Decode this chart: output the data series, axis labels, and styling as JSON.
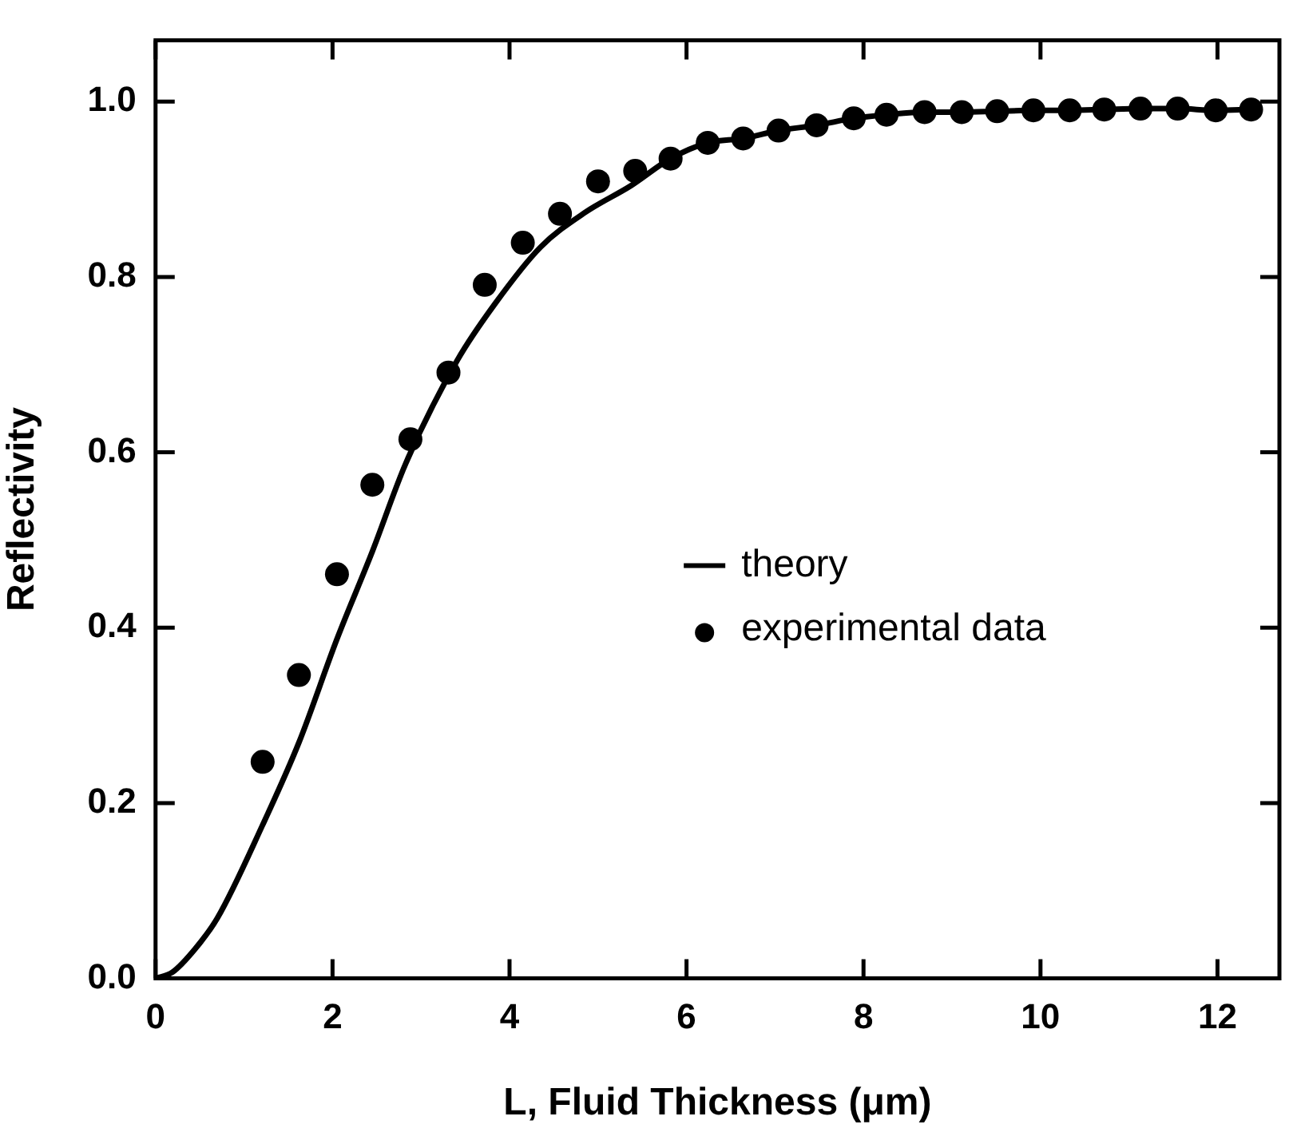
{
  "chart_data": {
    "type": "line",
    "xlabel": "L, Fluid Thickness (μm)",
    "ylabel": "Reflectivity",
    "xlim": [
      0,
      12.7
    ],
    "ylim": [
      0,
      1.07
    ],
    "xticks": [
      0,
      2,
      4,
      6,
      8,
      10,
      12
    ],
    "yticks": [
      {
        "value": 0,
        "label": "0.0"
      },
      {
        "value": 0.2,
        "label": "0.2"
      },
      {
        "value": 0.4,
        "label": "0.4"
      },
      {
        "value": 0.6,
        "label": "0.6"
      },
      {
        "value": 0.8,
        "label": "0.8"
      },
      {
        "value": 1,
        "label": "1.0"
      }
    ],
    "grid": false,
    "legend": "right",
    "series": [
      {
        "name": "theory",
        "type": "line",
        "color": "#000000",
        "marker": "none",
        "line_style": "solid",
        "x": [
          0,
          0.19,
          0.45,
          0.7,
          1.21,
          1.62,
          2.05,
          2.45,
          2.83,
          3.41,
          3.84,
          4.35,
          4.86,
          5.37,
          5.82,
          6.24,
          6.64,
          7.04,
          7.47,
          7.89,
          8.26,
          8.69,
          9.11,
          9.51,
          9.92,
          10.33,
          10.72,
          11.13,
          11.55,
          11.98,
          12.38
        ],
        "values": [
          0,
          0.007,
          0.034,
          0.069,
          0.175,
          0.269,
          0.387,
          0.487,
          0.588,
          0.705,
          0.77,
          0.834,
          0.874,
          0.904,
          0.935,
          0.953,
          0.958,
          0.967,
          0.973,
          0.981,
          0.985,
          0.988,
          0.988,
          0.989,
          0.99,
          0.99,
          0.991,
          0.992,
          0.992,
          0.99,
          0.991
        ]
      },
      {
        "name": "experimental data",
        "type": "scatter",
        "color": "#000000",
        "marker": "circle",
        "x": [
          1.21,
          1.62,
          2.05,
          2.45,
          2.88,
          3.31,
          3.72,
          4.15,
          4.57,
          5.0,
          5.42,
          5.82,
          6.24,
          6.64,
          7.04,
          7.47,
          7.89,
          8.26,
          8.69,
          9.11,
          9.51,
          9.92,
          10.33,
          10.72,
          11.13,
          11.55,
          11.98,
          12.38
        ],
        "values": [
          0.247,
          0.346,
          0.461,
          0.563,
          0.615,
          0.691,
          0.791,
          0.839,
          0.872,
          0.909,
          0.921,
          0.935,
          0.953,
          0.958,
          0.967,
          0.973,
          0.981,
          0.985,
          0.988,
          0.988,
          0.989,
          0.99,
          0.99,
          0.991,
          0.992,
          0.992,
          0.99,
          0.991
        ]
      }
    ]
  }
}
